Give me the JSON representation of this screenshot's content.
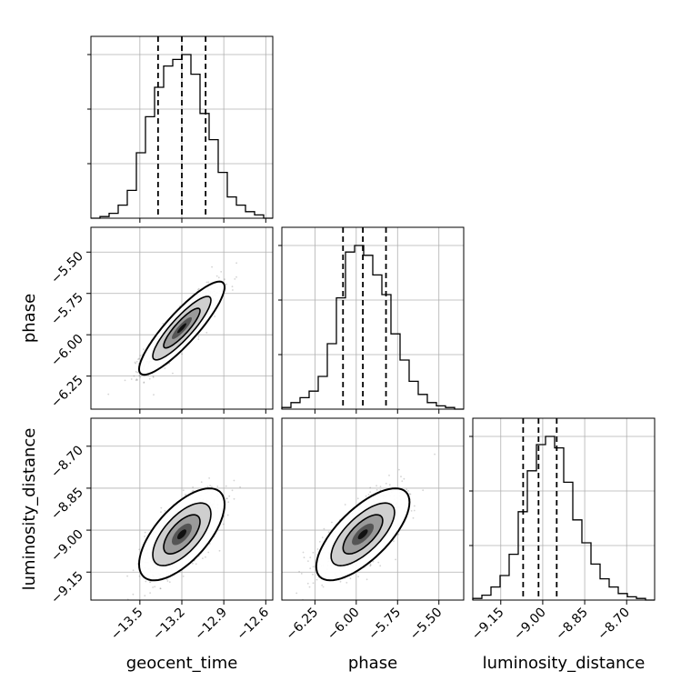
{
  "chart_data": {
    "type": "corner",
    "grid": true,
    "parameters": [
      {
        "name": "geocent_time",
        "label": "geocent_time",
        "range": [
          -13.85,
          -12.55
        ],
        "ticks": [
          -13.5,
          -13.2,
          -12.9,
          -12.6
        ],
        "tick_labels": [
          "−13.5",
          "−13.2",
          "−12.9",
          "−12.6"
        ],
        "quantiles": [
          -13.37,
          -13.2,
          -13.03
        ],
        "hist_edges_start": -13.85,
        "hist_bin_width": 0.065,
        "hist_counts": [
          0,
          1,
          3,
          8,
          17,
          40,
          62,
          80,
          93,
          97,
          100,
          88,
          64,
          48,
          28,
          13,
          8,
          4,
          2,
          0
        ]
      },
      {
        "name": "phase",
        "label": "phase",
        "range": [
          -6.45,
          -5.35
        ],
        "ticks": [
          -6.25,
          -6.0,
          -5.75,
          -5.5
        ],
        "tick_labels": [
          "−6.25",
          "−6.00",
          "−5.75",
          "−5.50"
        ],
        "quantiles": [
          -6.08,
          -5.96,
          -5.82
        ],
        "hist_edges_start": -6.45,
        "hist_bin_width": 0.055,
        "hist_counts": [
          1,
          4,
          7,
          11,
          20,
          40,
          68,
          96,
          100,
          94,
          82,
          70,
          46,
          30,
          17,
          9,
          4,
          2,
          1,
          0
        ]
      },
      {
        "name": "luminosity_distance",
        "label": "luminosity_distance",
        "range": [
          -9.25,
          -8.6
        ],
        "ticks": [
          -9.15,
          -9.0,
          -8.85,
          -8.7
        ],
        "tick_labels": [
          "−9.15",
          "−9.00",
          "−8.85",
          "−8.70"
        ],
        "quantiles": [
          -9.07,
          -9.015,
          -8.95
        ],
        "hist_edges_start": -9.25,
        "hist_bin_width": 0.0325,
        "hist_counts": [
          1,
          3,
          8,
          15,
          28,
          54,
          79,
          95,
          100,
          93,
          72,
          49,
          35,
          22,
          13,
          8,
          4,
          2,
          1,
          0
        ]
      }
    ],
    "pairs": [
      {
        "x": "geocent_time",
        "y": "phase",
        "mean": [
          -13.2,
          -5.96
        ],
        "sd": [
          0.13,
          0.12
        ],
        "corr": 0.88
      },
      {
        "x": "geocent_time",
        "y": "luminosity_distance",
        "mean": [
          -13.2,
          -9.015
        ],
        "sd": [
          0.13,
          0.07
        ],
        "corr": 0.65
      },
      {
        "x": "phase",
        "y": "luminosity_distance",
        "mean": [
          -5.96,
          -9.015
        ],
        "sd": [
          0.12,
          0.07
        ],
        "corr": 0.7
      }
    ]
  }
}
